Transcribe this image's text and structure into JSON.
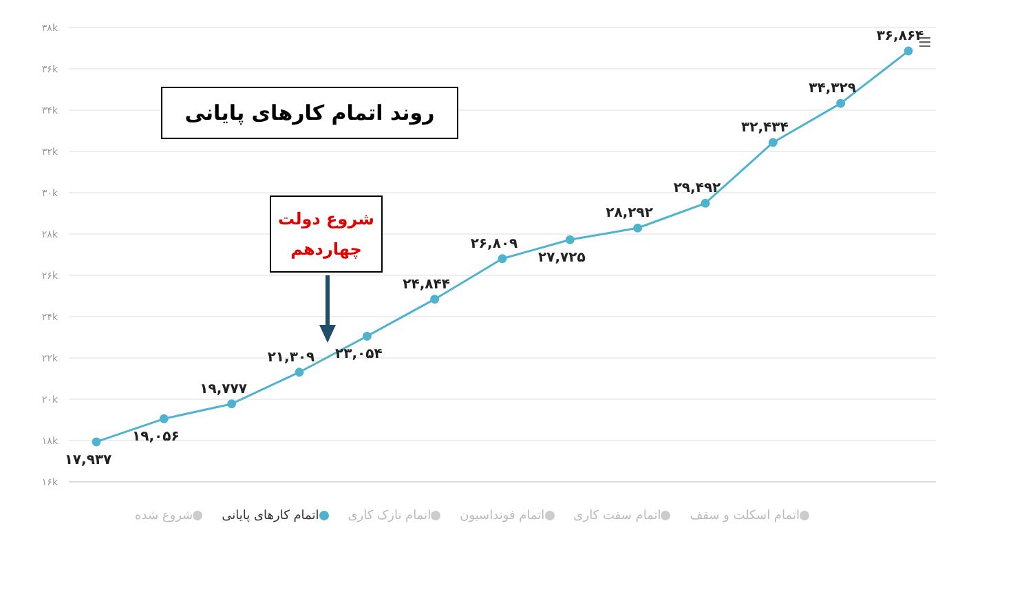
{
  "chart_data": {
    "type": "line",
    "title": "روند اتمام کارهای پایانی",
    "annotations": [
      "شروع دولت چهاردهم"
    ],
    "categories": [
      null,
      null,
      null,
      null,
      null,
      null,
      null,
      null,
      null,
      null,
      null,
      null,
      null
    ],
    "series": [
      {
        "name": "اتمام کارهای پایانی",
        "color": "#4fb3d0",
        "values": [
          17937,
          19056,
          19777,
          21309,
          23054,
          24844,
          26809,
          27725,
          28292,
          29492,
          32434,
          34329,
          36864
        ],
        "value_labels": [
          "۱۷,۹۳۷",
          "۱۹,۰۵۶",
          "۱۹,۷۷۷",
          "۲۱,۳۰۹",
          "۲۳,۰۵۴",
          "۲۴,۸۴۴",
          "۲۶,۸۰۹",
          "۲۷,۷۲۵",
          "۲۸,۲۹۲",
          "۲۹,۴۹۲",
          "۳۲,۴۳۴",
          "۳۴,۳۲۹",
          "۳۶,۸۶۴"
        ]
      },
      {
        "name": "اتمام نازک کاری",
        "color": "#cccccc",
        "values": [
          null,
          null,
          null,
          null,
          null,
          null,
          null,
          null,
          null,
          null,
          null,
          null,
          null
        ]
      },
      {
        "name": "اتمام سفت کاری",
        "color": "#cccccc",
        "values": [
          null,
          null,
          null,
          null,
          null,
          null,
          null,
          null,
          null,
          null,
          null,
          null,
          null
        ]
      },
      {
        "name": "اتمام اسکلت و سقف",
        "color": "#cccccc",
        "values": [
          null,
          null,
          null,
          null,
          null,
          null,
          null,
          null,
          null,
          null,
          null,
          null,
          null
        ]
      },
      {
        "name": "اتمام فونداسیون",
        "color": "#cccccc",
        "values": [
          null,
          null,
          null,
          null,
          null,
          null,
          null,
          null,
          null,
          null,
          null,
          null,
          null
        ]
      },
      {
        "name": "شروع شده",
        "color": "#cccccc",
        "values": [
          null,
          null,
          null,
          null,
          null,
          null,
          null,
          null,
          null,
          null,
          null,
          null,
          null
        ]
      }
    ],
    "ylim": [
      16000,
      38000
    ],
    "yticks": [
      {
        "value": 16000,
        "label": "۱۶k"
      },
      {
        "value": 18000,
        "label": "۱۸k"
      },
      {
        "value": 20000,
        "label": "۲۰k"
      },
      {
        "value": 22000,
        "label": "۲۲k"
      },
      {
        "value": 24000,
        "label": "۲۴k"
      },
      {
        "value": 26000,
        "label": "۲۶k"
      },
      {
        "value": 28000,
        "label": "۲۸k"
      },
      {
        "value": 30000,
        "label": "۳۰k"
      },
      {
        "value": 32000,
        "label": "۳۲k"
      },
      {
        "value": 34000,
        "label": "۳۴k"
      },
      {
        "value": 36000,
        "label": "۳۶k"
      },
      {
        "value": 38000,
        "label": "۳۸k"
      }
    ],
    "grid": "y",
    "legend": "bottom",
    "marker": "circle",
    "line_style": "solid",
    "tick_labels": "y"
  }
}
